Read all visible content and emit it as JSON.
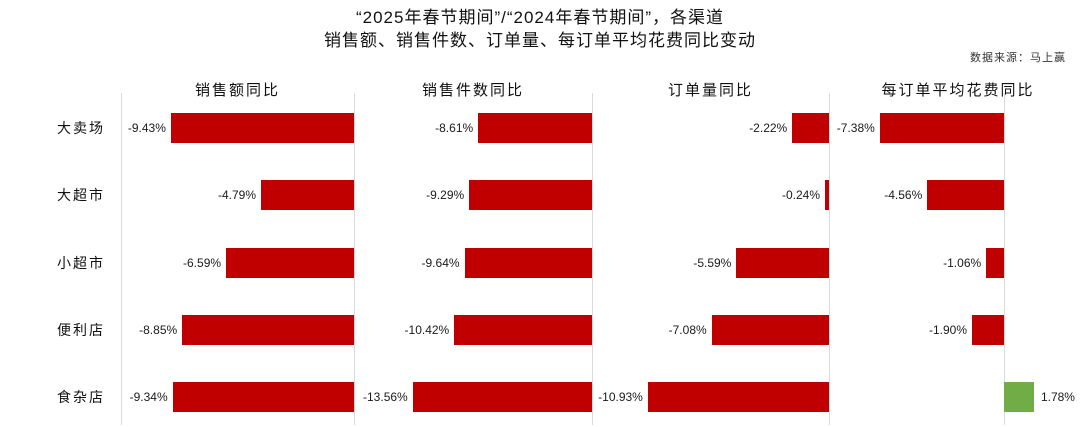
{
  "title": {
    "line1": "“2025年春节期间”/“2024年春节期间”，各渠道",
    "line2": "销售额、销售件数、订单量、每订单平均花费同比变动"
  },
  "source": "数据来源：马上赢",
  "chart_data": {
    "type": "bar",
    "orientation": "horizontal",
    "title": "“2025年春节期间”/“2024年春节期间”，各渠道销售额、销售件数、订单量、每订单平均花费同比变动",
    "categories": [
      "大卖场",
      "大超市",
      "小超市",
      "便利店",
      "食杂店"
    ],
    "series": [
      {
        "name": "销售额同比",
        "values": [
          -9.43,
          -4.79,
          -6.59,
          -8.85,
          -9.34
        ],
        "labels": [
          "-9.43%",
          "-4.79%",
          "-6.59%",
          "-8.85%",
          "-9.34%"
        ],
        "axis_min": -12.0,
        "axis_max": 0
      },
      {
        "name": "销售件数同比",
        "values": [
          -8.61,
          -9.29,
          -9.64,
          -10.42,
          -13.56
        ],
        "labels": [
          "-8.61%",
          "-9.29%",
          "-9.64%",
          "-10.42%",
          "-13.56%"
        ],
        "axis_min": -18.0,
        "axis_max": 0
      },
      {
        "name": "订单量同比",
        "values": [
          -2.22,
          -0.24,
          -5.59,
          -7.08,
          -10.93
        ],
        "labels": [
          "-2.22%",
          "-0.24%",
          "-5.59%",
          "-7.08%",
          "-10.93%"
        ],
        "axis_min": -14.3,
        "axis_max": 0
      },
      {
        "name": "每订单平均花费同比",
        "values": [
          -7.38,
          -4.56,
          -1.06,
          -1.9,
          1.78
        ],
        "labels": [
          "-7.38%",
          "-4.56%",
          "-1.06%",
          "-1.90%",
          "1.78%"
        ],
        "axis_min": -10.4,
        "axis_max": 2.6
      }
    ],
    "colors": {
      "negative": "#C00000",
      "positive": "#70AD47",
      "gridline": "#D9D9D9"
    },
    "legend": "none",
    "value_labels": "outside bar end",
    "layout_note": "4 small-multiple panels sharing category rows; each panel zero axis is its right gridline; independent axis scaling per panel"
  }
}
